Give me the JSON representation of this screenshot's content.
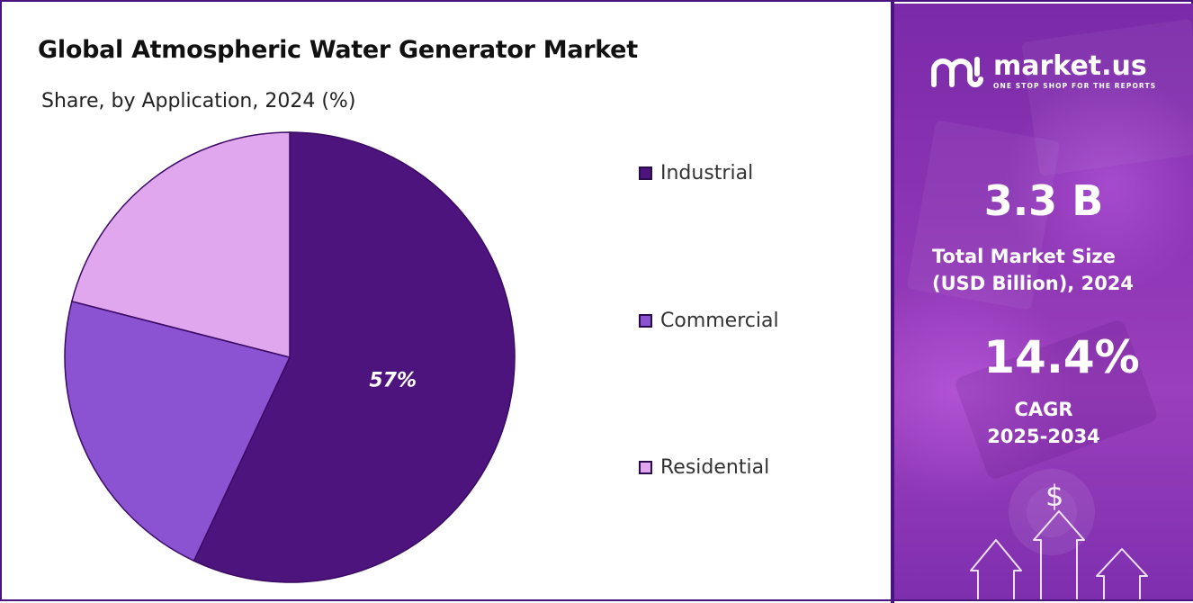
{
  "chart_data": {
    "type": "pie",
    "title": "Global Atmospheric Water Generator Market",
    "subtitle": "Share, by Application, 2024 (%)",
    "slices": [
      {
        "label": "Industrial",
        "value": 57,
        "color": "#4e147e",
        "data_label": "57%"
      },
      {
        "label": "Commercial",
        "value": 22,
        "color": "#8b52d2",
        "data_label": ""
      },
      {
        "label": "Residential",
        "value": 21,
        "color": "#e0a6ee",
        "data_label": ""
      }
    ],
    "legend_position": "right",
    "start_angle": "12 o'clock",
    "direction": "clockwise"
  },
  "brand": {
    "name": "market.us",
    "tagline": "ONE STOP SHOP FOR THE REPORTS",
    "icon": "market-us-logo-icon"
  },
  "stats": {
    "market_size_value": "3.3 B",
    "market_size_label_line1": "Total Market Size",
    "market_size_label_line2": "(USD Billion), 2024",
    "cagr_value": "14.4%",
    "cagr_label_line1": "CAGR",
    "cagr_label_line2": "2025-2034"
  },
  "decor": {
    "currency_symbol": "$",
    "icons": [
      "growth-arrow-icon",
      "dollar-icon"
    ]
  },
  "colors": {
    "border": "#4a1480",
    "panel_accent": "#8b34b4"
  }
}
